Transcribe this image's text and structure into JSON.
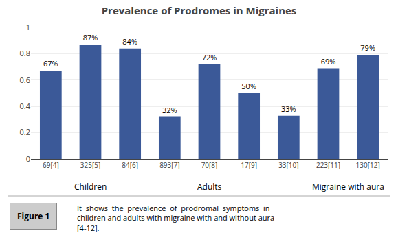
{
  "chart_data": {
    "type": "bar",
    "title": "Prevalence of Prodromes in Migraines",
    "categories": [
      "69[4]",
      "325[5]",
      "84[6]",
      "893[7]",
      "70[8]",
      "17[9]",
      "33[10]",
      "223[11]",
      "130[12]"
    ],
    "values": [
      0.67,
      0.87,
      0.84,
      0.32,
      0.72,
      0.5,
      0.33,
      0.69,
      0.79
    ],
    "value_labels": [
      "67%",
      "87%",
      "84%",
      "32%",
      "72%",
      "50%",
      "33%",
      "69%",
      "79%"
    ],
    "data_labels": true,
    "color": "#3B5998",
    "ylim": [
      0,
      1.0
    ],
    "yticks": [
      0,
      0.2,
      0.4,
      0.6,
      0.8,
      1
    ],
    "grid": true,
    "annotations": [
      {
        "text": "Children",
        "x": 1.0
      },
      {
        "text": "Adults",
        "x": 4.0
      },
      {
        "text": "Migraine with aura",
        "x": 7.5
      },
      {
        "text": "Figure 1"
      },
      {
        "text": "It  shows  the  prevalence  of  prodromal  symptoms  in"
      },
      {
        "text": "children and adults with migraine with and without aura"
      },
      {
        "text": "[4-12]."
      }
    ]
  }
}
